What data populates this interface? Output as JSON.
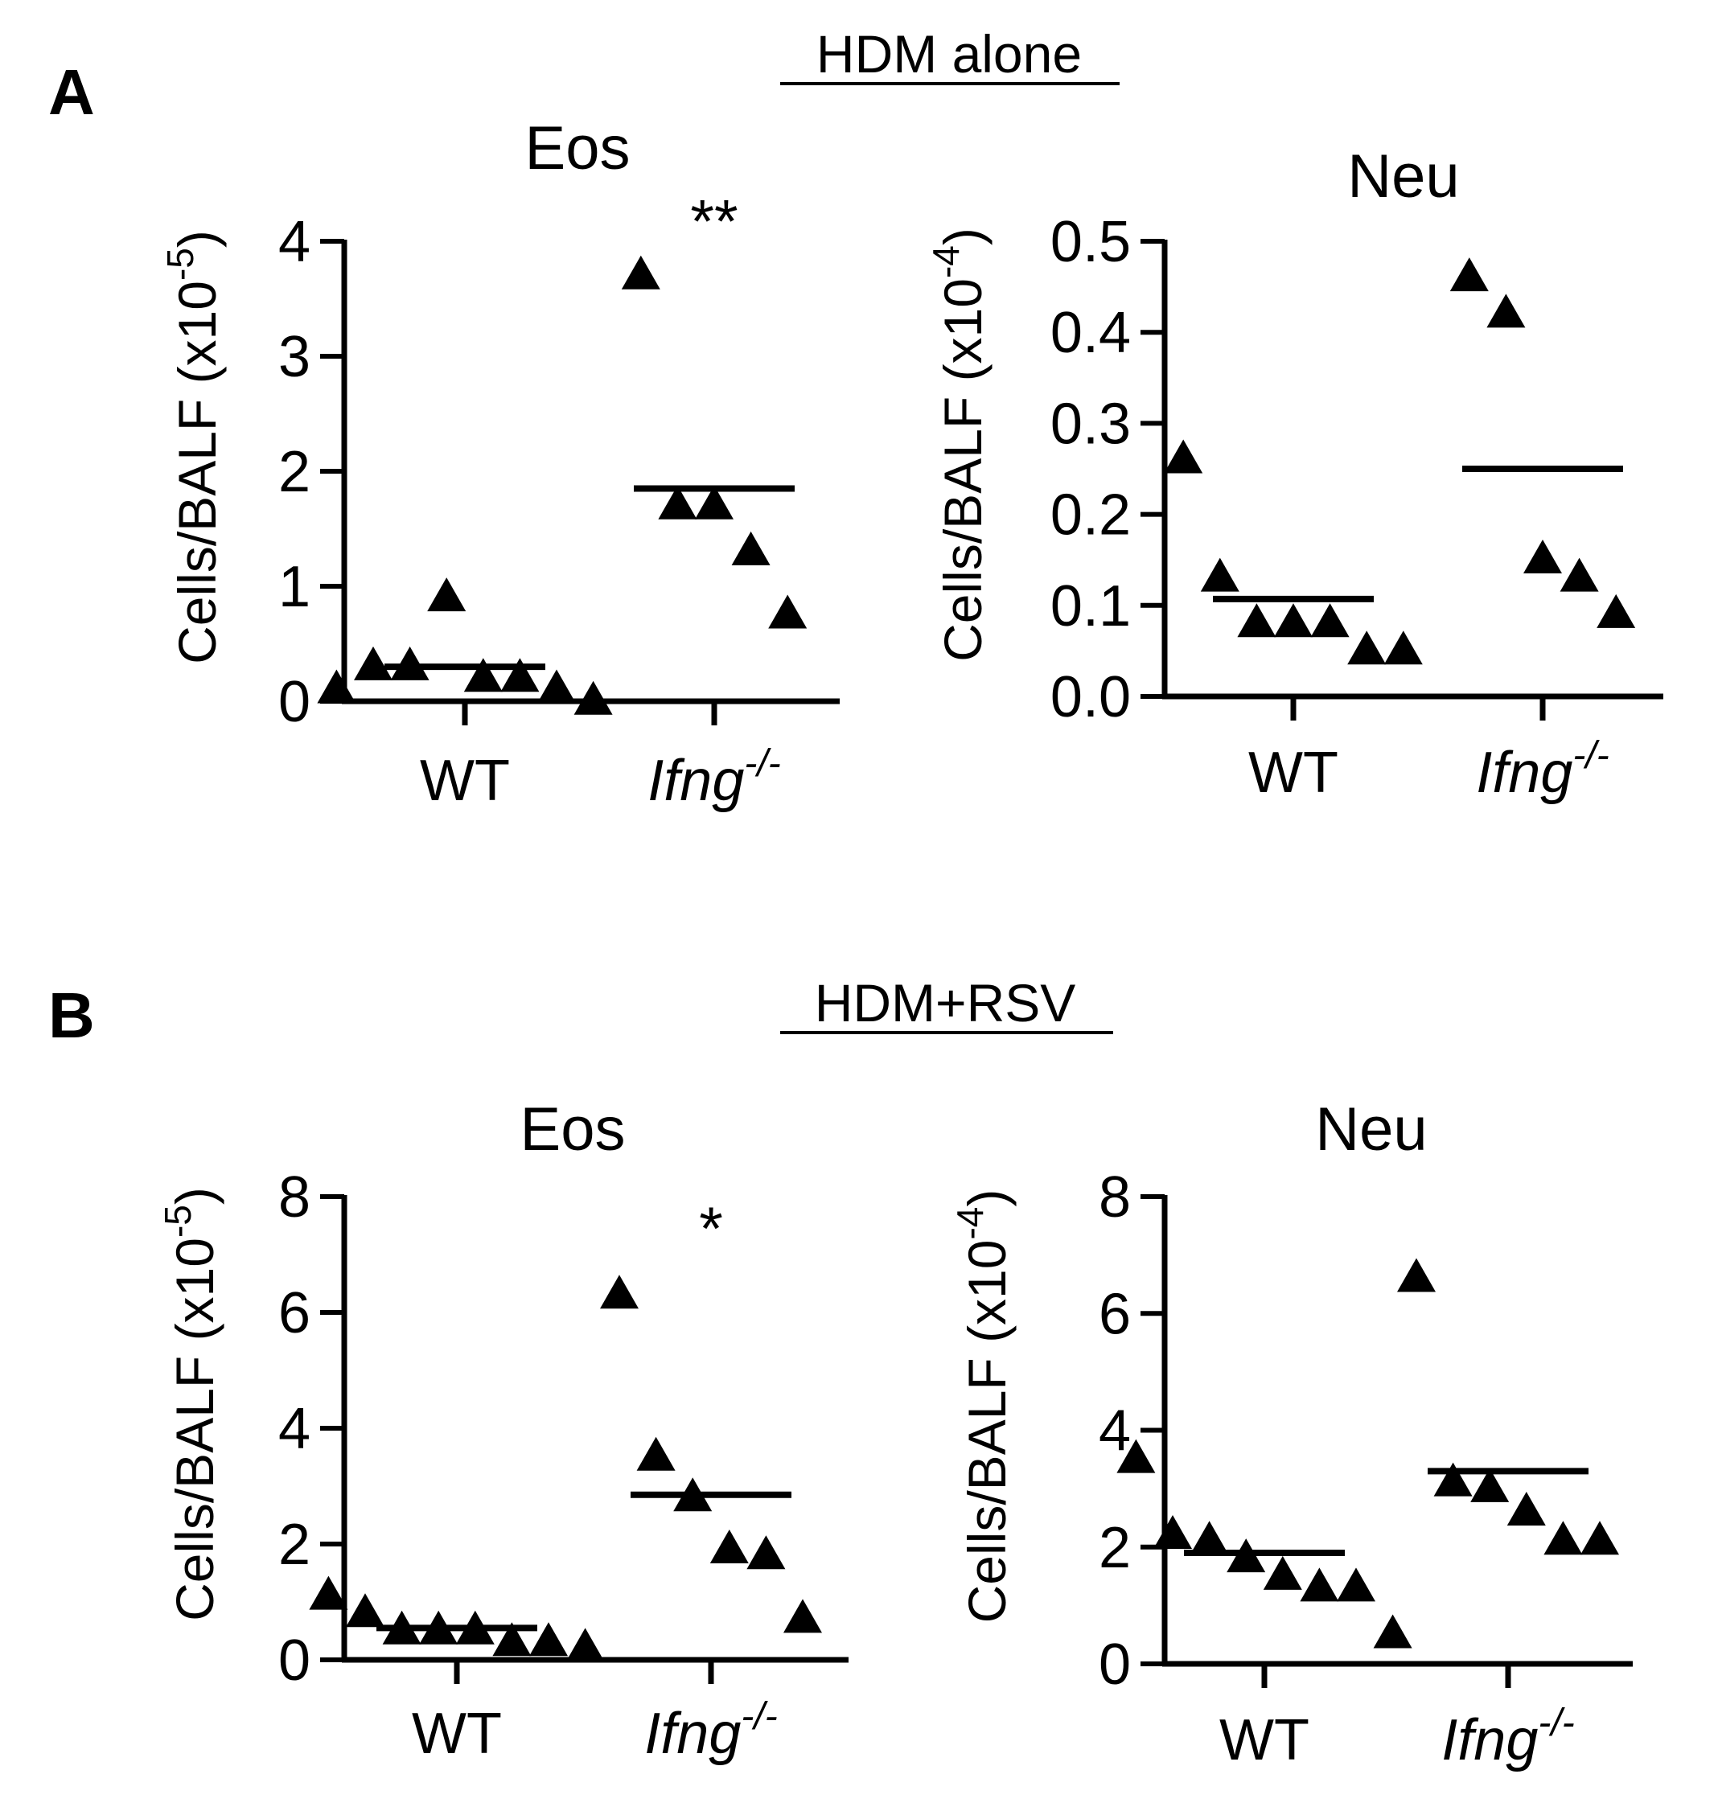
{
  "figure": {
    "panels": [
      {
        "letter": "A",
        "condition": "HDM alone"
      },
      {
        "letter": "B",
        "condition": "HDM+RSV"
      }
    ]
  },
  "chart_data": [
    {
      "type": "scatter",
      "panel": "A",
      "condition": "HDM alone",
      "title": "Eos",
      "ylabel": "Cells/BALF (x10",
      "ylabel_exponent": "-5",
      "ylabel_close": ")",
      "ylim": [
        0,
        4
      ],
      "yticks": [
        0,
        1,
        2,
        3,
        4
      ],
      "tick_decimals": 0,
      "categories": [
        {
          "label": "WT",
          "superscript": "",
          "italic": false
        },
        {
          "label": "Ifng",
          "superscript": "-/-",
          "italic": true
        }
      ],
      "series": [
        {
          "name": "WT",
          "values": [
            0.1,
            0.3,
            0.3,
            0.9,
            0.2,
            0.2,
            0.1,
            0.0
          ],
          "mean": 0.3
        },
        {
          "name": "Ifng-/-",
          "values": [
            3.7,
            1.7,
            1.7,
            1.3,
            0.75
          ],
          "mean": 1.85
        }
      ],
      "significance": [
        {
          "category": 1,
          "label": "**",
          "y": 4.2
        }
      ]
    },
    {
      "type": "scatter",
      "panel": "A",
      "condition": "HDM alone",
      "title": "Neu",
      "ylabel": "Cells/BALF (x10",
      "ylabel_exponent": "-4",
      "ylabel_close": ")",
      "ylim": [
        0,
        0.5
      ],
      "yticks": [
        0.0,
        0.1,
        0.2,
        0.3,
        0.4,
        0.5
      ],
      "tick_decimals": 1,
      "categories": [
        {
          "label": "WT",
          "superscript": "",
          "italic": false
        },
        {
          "label": "Ifng",
          "superscript": "-/-",
          "italic": true
        }
      ],
      "series": [
        {
          "name": "WT",
          "values": [
            0.26,
            0.13,
            0.08,
            0.08,
            0.08,
            0.05,
            0.05
          ],
          "mean": 0.107
        },
        {
          "name": "Ifng-/-",
          "values": [
            0.46,
            0.42,
            0.15,
            0.13,
            0.09
          ],
          "mean": 0.25
        }
      ],
      "significance": []
    },
    {
      "type": "scatter",
      "panel": "B",
      "condition": "HDM+RSV",
      "title": "Eos",
      "ylabel": "Cells/BALF (x10",
      "ylabel_exponent": "-5",
      "ylabel_close": ")",
      "ylim": [
        0,
        8
      ],
      "yticks": [
        0,
        2,
        4,
        6,
        8
      ],
      "tick_decimals": 0,
      "categories": [
        {
          "label": "WT",
          "superscript": "",
          "italic": false
        },
        {
          "label": "Ifng",
          "superscript": "-/-",
          "italic": true
        }
      ],
      "series": [
        {
          "name": "WT",
          "values": [
            1.1,
            0.8,
            0.5,
            0.5,
            0.5,
            0.3,
            0.3,
            0.2
          ],
          "mean": 0.55
        },
        {
          "name": "Ifng-/-",
          "values": [
            6.3,
            3.5,
            2.8,
            1.9,
            1.8,
            0.7
          ],
          "mean": 2.85
        }
      ],
      "significance": [
        {
          "category": 1,
          "label": "*",
          "y": 7.5
        }
      ]
    },
    {
      "type": "scatter",
      "panel": "B",
      "condition": "HDM+RSV",
      "title": "Neu",
      "ylabel": "Cells/BALF (x10",
      "ylabel_exponent": "-4",
      "ylabel_close": ")",
      "ylim": [
        0,
        8
      ],
      "yticks": [
        0,
        2,
        4,
        6,
        8
      ],
      "tick_decimals": 0,
      "categories": [
        {
          "label": "WT",
          "superscript": "",
          "italic": false
        },
        {
          "label": "Ifng",
          "superscript": "-/-",
          "italic": true
        }
      ],
      "series": [
        {
          "name": "WT",
          "values": [
            3.5,
            2.2,
            2.1,
            1.8,
            1.5,
            1.3,
            1.3,
            0.5
          ],
          "mean": 1.9
        },
        {
          "name": "Ifng-/-",
          "values": [
            6.6,
            3.1,
            3.0,
            2.6,
            2.1,
            2.1
          ],
          "mean": 3.3
        }
      ],
      "significance": []
    }
  ]
}
